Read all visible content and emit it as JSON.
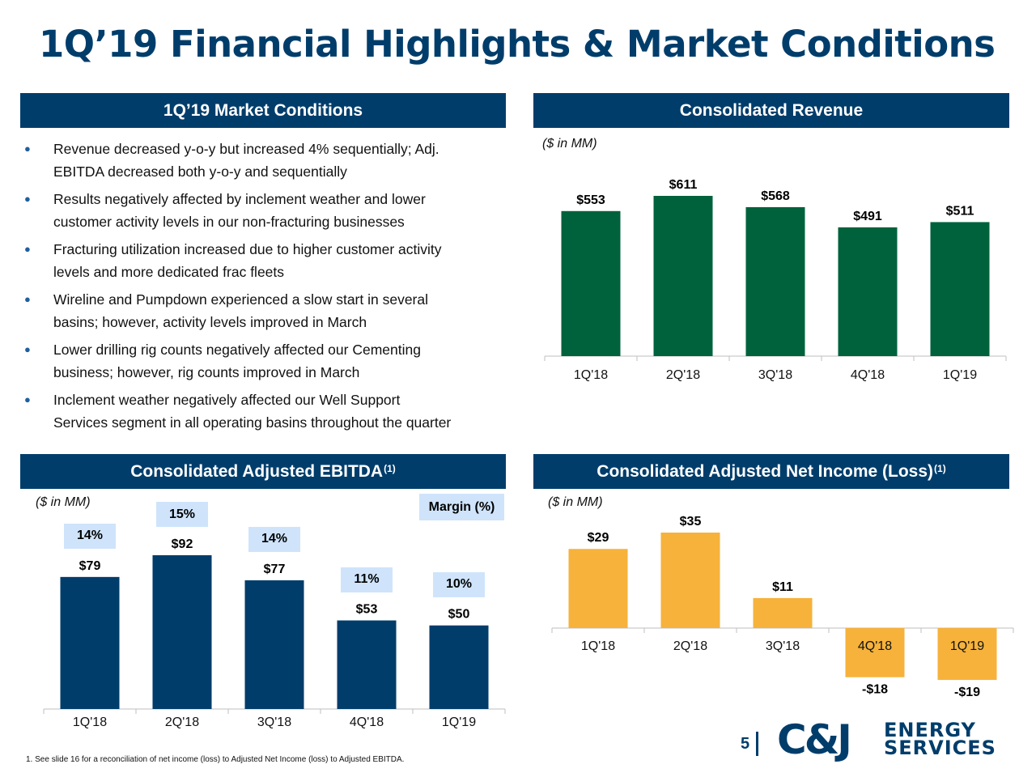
{
  "title": "1Q’19 Financial Highlights & Market Conditions",
  "market_conditions": {
    "header": "1Q’19 Market Conditions",
    "bullets": [
      [
        "Revenue decreased y-o-y but increased 4% sequentially; Adj.",
        "EBITDA decreased both y-o-y and sequentially"
      ],
      [
        "Results negatively affected by inclement weather and lower",
        "customer activity levels in our non-fracturing businesses"
      ],
      [
        "Fracturing utilization increased due to higher customer activity",
        "levels and more dedicated frac fleets"
      ],
      [
        "Wireline and Pumpdown experienced a slow start in several",
        "basins; however, activity levels improved in March"
      ],
      [
        "Lower drilling rig counts negatively affected our Cementing",
        "business; however, rig counts improved in March"
      ],
      [
        "Inclement weather negatively affected our Well Support",
        "Services segment in all operating basins throughout the quarter"
      ]
    ]
  },
  "revenue_panel": {
    "header": "Consolidated Revenue",
    "unit": "($ in MM)"
  },
  "ebitda_panel": {
    "header": "Consolidated Adjusted EBITDA",
    "header_sup": "(1)",
    "unit": "($ in MM)",
    "margin_legend": "Margin (%)"
  },
  "net_income_panel": {
    "header": "Consolidated Adjusted Net Income (Loss)",
    "header_sup": "(1)",
    "unit": "($ in MM)"
  },
  "chart_data": [
    {
      "id": "revenue",
      "type": "bar",
      "categories": [
        "1Q'18",
        "2Q'18",
        "3Q'18",
        "4Q'18",
        "1Q'19"
      ],
      "values": [
        553,
        611,
        568,
        491,
        511
      ],
      "value_labels": [
        "$553",
        "$611",
        "$568",
        "$491",
        "$511"
      ],
      "color": "#00623c",
      "ylim": [
        0,
        650
      ]
    },
    {
      "id": "ebitda",
      "type": "bar",
      "categories": [
        "1Q'18",
        "2Q'18",
        "3Q'18",
        "4Q'18",
        "1Q'19"
      ],
      "values": [
        79,
        92,
        77,
        53,
        50
      ],
      "value_labels": [
        "$79",
        "$92",
        "$77",
        "$53",
        "$50"
      ],
      "margins": [
        "14%",
        "15%",
        "14%",
        "11%",
        "10%"
      ],
      "color": "#003d6b",
      "ylim": [
        0,
        100
      ]
    },
    {
      "id": "net_income",
      "type": "bar",
      "categories": [
        "1Q'18",
        "2Q'18",
        "3Q'18",
        "4Q'18",
        "1Q'19"
      ],
      "values": [
        29,
        35,
        11,
        -18,
        -19
      ],
      "value_labels": [
        "$29",
        "$35",
        "$11",
        "-$18",
        "-$19"
      ],
      "color": "#f6b23b",
      "ylim": [
        -25,
        40
      ]
    }
  ],
  "page_number": "5",
  "logo": {
    "mark": "C&J",
    "line1": "ENERGY",
    "line2": "SERVICES"
  },
  "footnote": "1.  See slide 16 for a reconciliation of net income (loss) to Adjusted Net Income (loss) to Adjusted EBITDA."
}
